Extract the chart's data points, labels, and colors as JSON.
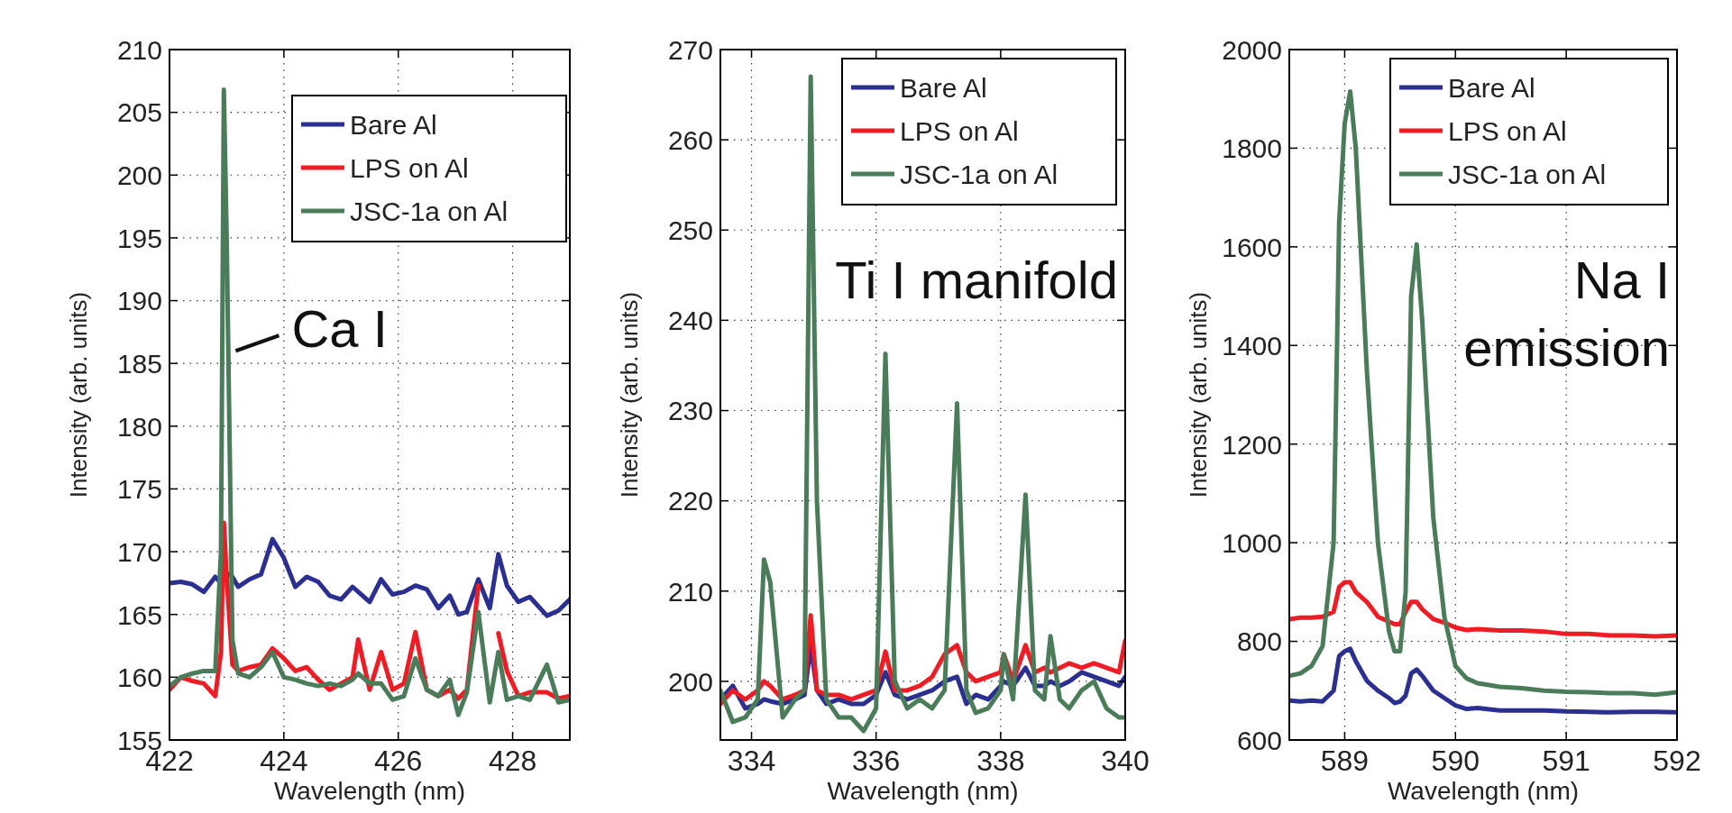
{
  "chart_data": [
    {
      "type": "line",
      "xlabel": "Wavelength (nm)",
      "ylabel": "Intensity (arb. units)",
      "xlim": [
        422,
        429
      ],
      "ylim": [
        155,
        210
      ],
      "xticks": [
        422,
        424,
        426,
        428
      ],
      "yticks": [
        155,
        160,
        165,
        170,
        175,
        180,
        185,
        190,
        195,
        200,
        205,
        210
      ],
      "grid": true,
      "legend": "top right",
      "line_style": "solid",
      "annotations": [
        {
          "text": "Ca I",
          "x": 423,
          "y": 186
        }
      ],
      "x": [
        422,
        422.2,
        422.4,
        422.6,
        422.8,
        422.9,
        422.95,
        423,
        423.1,
        423.2,
        423.4,
        423.6,
        423.8,
        424,
        424.2,
        424.4,
        424.6,
        424.8,
        425,
        425.2,
        425.3,
        425.5,
        425.7,
        425.9,
        426.1,
        426.3,
        426.5,
        426.7,
        426.9,
        427.05,
        427.2,
        427.4,
        427.6,
        427.75,
        427.9,
        428.1,
        428.3,
        428.6,
        428.8,
        429
      ],
      "series": [
        {
          "name": "Bare Al",
          "color": "#2b2f8f",
          "values": [
            167.5,
            167.6,
            167.4,
            166.8,
            168,
            167.5,
            168,
            168.3,
            168,
            167.2,
            167.8,
            168.2,
            171,
            169.5,
            167.2,
            168,
            167.6,
            166.5,
            166.2,
            167.2,
            166.8,
            166,
            167.8,
            166.6,
            166.8,
            167.3,
            167,
            165.5,
            166.5,
            165,
            165.2,
            167.8,
            165.5,
            169.8,
            167.3,
            166,
            166.4,
            164.9,
            165.3,
            166.2
          ]
        },
        {
          "name": "LPS on Al",
          "color": "#ee1c24",
          "values": [
            159,
            160,
            159.7,
            159.5,
            158.5,
            162,
            172.3,
            168,
            161,
            160.5,
            160.8,
            161,
            162.3,
            161.5,
            160.5,
            160.8,
            159.8,
            159,
            159.5,
            160,
            163,
            159,
            162,
            159,
            159.5,
            163.6,
            159,
            158.5,
            159,
            158.3,
            159,
            167.3,
            null,
            163.5,
            160.5,
            158.5,
            158.8,
            158.8,
            158.3,
            158.5
          ]
        },
        {
          "name": "JSC-1a on Al",
          "color": "#4a7c5a",
          "values": [
            159.3,
            160,
            160.3,
            160.5,
            160.5,
            170,
            206.8,
            195,
            163,
            160.3,
            160,
            160.8,
            162,
            160,
            159.8,
            159.5,
            159.3,
            159.5,
            159.3,
            159.8,
            160.3,
            159.5,
            159.5,
            158.2,
            158.5,
            161.5,
            159,
            158.5,
            159.8,
            157,
            158.8,
            165.2,
            158,
            162,
            158.2,
            158.5,
            158.2,
            161,
            158,
            158.2
          ]
        }
      ]
    },
    {
      "type": "line",
      "xlabel": "Wavelength (nm)",
      "ylabel": "Intensity (arb. units)",
      "xlim": [
        333.5,
        340
      ],
      "ylim": [
        193.5,
        270
      ],
      "xticks": [
        334,
        336,
        338,
        340
      ],
      "yticks": [
        200,
        210,
        220,
        230,
        240,
        250,
        260,
        270
      ],
      "grid": true,
      "legend": "top right",
      "line_style": "solid",
      "annotations": [
        "Ti I manifold"
      ],
      "x": [
        333.5,
        333.7,
        333.9,
        334.1,
        334.2,
        334.3,
        334.5,
        334.7,
        334.85,
        334.95,
        335.05,
        335.2,
        335.4,
        335.6,
        335.8,
        336,
        336.15,
        336.3,
        336.5,
        336.7,
        336.9,
        337.1,
        337.3,
        337.45,
        337.6,
        337.8,
        338,
        338.05,
        338.2,
        338.4,
        338.55,
        338.7,
        338.8,
        338.95,
        339.1,
        339.3,
        339.5,
        339.7,
        339.9,
        340
      ],
      "series": [
        {
          "name": "Bare Al",
          "color": "#2b2f8f",
          "values": [
            198,
            199.5,
            197,
            197.5,
            198,
            197.8,
            197.5,
            198,
            198.5,
            204,
            199,
            197.5,
            198,
            197.5,
            197.5,
            198.5,
            201,
            198.5,
            198,
            198.5,
            199,
            200,
            200.5,
            197.5,
            198.5,
            198,
            199.5,
            200,
            199.5,
            201.5,
            199.5,
            199.5,
            200,
            199.5,
            200,
            201,
            200.5,
            200,
            199.5,
            200.5
          ]
        },
        {
          "name": "LPS on Al",
          "color": "#ee1c24",
          "values": [
            197.5,
            199,
            198,
            199,
            200,
            199.5,
            198,
            198.5,
            199,
            207.3,
            199,
            198.5,
            198.5,
            198,
            198.5,
            199,
            203.3,
            199,
            199,
            199.5,
            200.5,
            203,
            204,
            201,
            200,
            200.5,
            201,
            203,
            200,
            204,
            201,
            201.5,
            201,
            201.5,
            202,
            201.5,
            202,
            201.5,
            201,
            204.5
          ]
        },
        {
          "name": "JSC-1a on Al",
          "color": "#4a7c5a",
          "values": [
            199,
            195.5,
            196,
            198,
            213.5,
            211,
            196,
            198,
            199,
            267,
            220,
            198,
            196,
            196,
            194.5,
            197,
            236.3,
            200,
            197,
            198,
            197,
            199,
            230.8,
            199,
            196.5,
            197,
            199,
            203,
            198,
            220.7,
            199,
            198,
            205,
            198,
            197,
            199,
            200,
            197,
            196,
            196
          ]
        }
      ]
    },
    {
      "type": "line",
      "xlabel": "Wavelength (nm)",
      "ylabel": "Intensity (arb. units)",
      "xlim": [
        588.5,
        592
      ],
      "ylim": [
        600,
        2000
      ],
      "xticks": [
        589,
        590,
        591,
        592
      ],
      "yticks": [
        600,
        800,
        1000,
        1200,
        1400,
        1600,
        1800,
        2000
      ],
      "grid": true,
      "legend": "top right",
      "line_style": "solid",
      "annotations": [
        "Na I\nemission"
      ],
      "x": [
        588.5,
        588.6,
        588.7,
        588.8,
        588.9,
        588.95,
        589,
        589.05,
        589.1,
        589.2,
        589.3,
        589.4,
        589.45,
        589.5,
        589.55,
        589.6,
        589.65,
        589.7,
        589.8,
        589.9,
        590,
        590.1,
        590.2,
        590.4,
        590.6,
        590.8,
        591,
        591.2,
        591.4,
        591.6,
        591.8,
        592
      ],
      "series": [
        {
          "name": "Bare Al",
          "color": "#2b2f8f",
          "values": [
            680,
            678,
            680,
            678,
            700,
            770,
            780,
            785,
            760,
            720,
            700,
            685,
            675,
            678,
            690,
            735,
            743,
            730,
            700,
            685,
            670,
            663,
            665,
            660,
            660,
            660,
            658,
            657,
            656,
            657,
            657,
            656
          ]
        },
        {
          "name": "LPS on Al",
          "color": "#ee1c24",
          "values": [
            845,
            848,
            848,
            850,
            860,
            910,
            920,
            920,
            900,
            880,
            850,
            840,
            835,
            835,
            860,
            880,
            880,
            865,
            845,
            838,
            828,
            823,
            825,
            822,
            822,
            820,
            815,
            815,
            812,
            812,
            810,
            812
          ]
        },
        {
          "name": "JSC-1a on Al",
          "color": "#4a7c5a",
          "values": [
            730,
            735,
            750,
            790,
            1000,
            1650,
            1850,
            1915,
            1800,
            1350,
            1000,
            820,
            780,
            780,
            900,
            1500,
            1605,
            1450,
            1050,
            850,
            750,
            725,
            715,
            708,
            705,
            700,
            698,
            697,
            695,
            695,
            692,
            697
          ]
        }
      ]
    }
  ]
}
